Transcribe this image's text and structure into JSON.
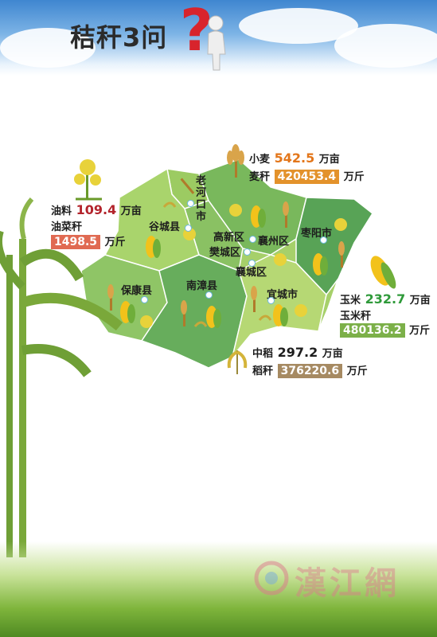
{
  "title": "秸秆3问",
  "qmark": "?",
  "places": {
    "laohekou": "老河口市",
    "gucheng": "谷城县",
    "gaoxin": "高新区",
    "xiangzhou": "襄州区",
    "zaoyang": "枣阳市",
    "fancheng": "樊城区",
    "xiangcheng": "襄城区",
    "baokang": "保康县",
    "nanzhang": "南漳县",
    "yicheng": "宜城市"
  },
  "wheat": {
    "crop": "小麦",
    "crop_value": "542.5",
    "crop_unit": "万亩",
    "straw": "麦秆",
    "straw_value": "420453.4",
    "straw_unit": "万斤"
  },
  "oil": {
    "crop": "油料",
    "crop_value": "109.4",
    "crop_unit": "万亩",
    "straw": "油菜秆",
    "straw_value": "1498.5",
    "straw_unit": "万斤"
  },
  "corn": {
    "crop": "玉米",
    "crop_value": "232.7",
    "crop_unit": "万亩",
    "straw": "玉米秆",
    "straw_value": "480136.2",
    "straw_unit": "万斤"
  },
  "rice": {
    "crop": "中稻",
    "crop_value": "297.2",
    "crop_unit": "万亩",
    "straw": "稻秆",
    "straw_value": "376220.6",
    "straw_unit": "万斤"
  },
  "watermark": "漢江網",
  "colors": {
    "wheat": "#e3922b",
    "oil": "#c8443a",
    "corn": "#7cb049",
    "rice": "#a68a62",
    "wheat_value": "#e3761a",
    "oil_value": "#b3242c",
    "corn_value": "#2f9a3a"
  }
}
